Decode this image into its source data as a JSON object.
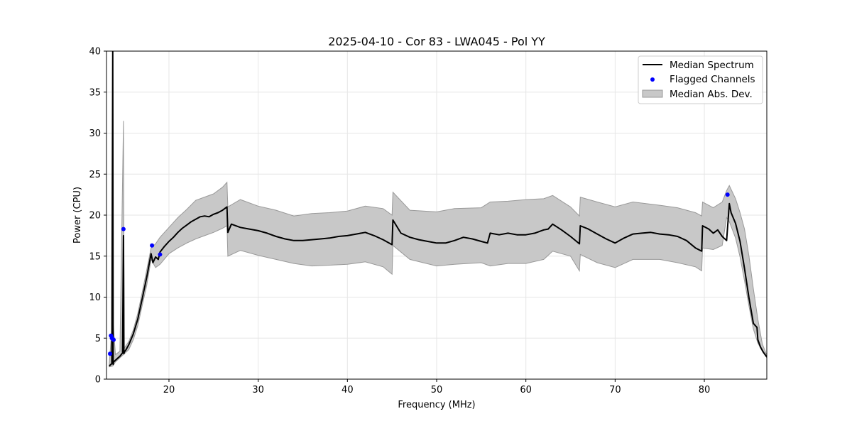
{
  "chart_data": {
    "type": "line",
    "title": "2025-04-10 - Cor 83 - LWA045 - Pol YY",
    "xlabel": "Frequency (MHz)",
    "ylabel": "Power (CPU)",
    "xlim": [
      13,
      87
    ],
    "ylim": [
      0,
      40
    ],
    "xticks": [
      20,
      30,
      40,
      50,
      60,
      70,
      80
    ],
    "yticks": [
      0,
      5,
      10,
      15,
      20,
      25,
      30,
      35,
      40
    ],
    "grid": true,
    "legend_position": "top-right",
    "colors": {
      "median": "#000000",
      "flagged": "#0000ff",
      "band_fill": "#c8c8c8",
      "band_edge": "#999999"
    },
    "legend": [
      {
        "label": "Median Spectrum",
        "kind": "line"
      },
      {
        "label": "Flagged Channels",
        "kind": "marker"
      },
      {
        "label": "Median Abs. Dev.",
        "kind": "patch"
      }
    ],
    "series": [
      {
        "name": "Median Spectrum",
        "x": [
          13.3,
          13.6,
          13.7,
          13.75,
          13.8,
          13.9,
          14.0,
          14.2,
          14.5,
          14.8,
          14.9,
          14.95,
          15.0,
          15.2,
          15.5,
          16.0,
          16.5,
          17.0,
          17.5,
          18.0,
          18.2,
          18.5,
          18.8,
          19.0,
          19.5,
          20.0,
          20.5,
          21.0,
          21.5,
          22.0,
          22.5,
          23.0,
          23.5,
          24.0,
          24.5,
          25.0,
          25.5,
          26.0,
          26.5,
          26.6,
          27.0,
          28.0,
          29.0,
          30.0,
          31.0,
          32.0,
          33.0,
          34.0,
          35.0,
          36.0,
          37.0,
          38.0,
          39.0,
          40.0,
          41.0,
          42.0,
          43.0,
          44.0,
          45.0,
          45.1,
          46.0,
          47.0,
          48.0,
          49.0,
          50.0,
          51.0,
          52.0,
          53.0,
          54.0,
          55.0,
          55.7,
          56.0,
          57.0,
          58.0,
          59.0,
          60.0,
          61.0,
          62.0,
          62.5,
          63.0,
          64.0,
          65.0,
          66.0,
          66.1,
          67.0,
          68.0,
          69.0,
          70.0,
          71.0,
          72.0,
          73.0,
          74.0,
          75.0,
          76.0,
          77.0,
          78.0,
          79.0,
          79.7,
          79.8,
          80.5,
          81.0,
          81.5,
          82.0,
          82.5,
          82.8,
          83.0,
          83.5,
          84.0,
          84.5,
          85.0,
          85.5,
          85.9,
          86.0,
          86.3,
          86.6,
          87.0
        ],
        "y": [
          1.6,
          1.9,
          40,
          1.8,
          2.1,
          2.2,
          2.3,
          2.5,
          2.8,
          3.2,
          17.5,
          3.1,
          3.3,
          3.6,
          4.2,
          5.5,
          7.3,
          9.8,
          12.4,
          15.3,
          14.2,
          14.9,
          14.6,
          15.5,
          16.2,
          16.8,
          17.3,
          17.9,
          18.4,
          18.8,
          19.2,
          19.5,
          19.8,
          19.9,
          19.8,
          20.1,
          20.3,
          20.6,
          21.0,
          17.9,
          18.9,
          18.5,
          18.3,
          18.1,
          17.8,
          17.4,
          17.1,
          16.9,
          16.9,
          17.0,
          17.1,
          17.2,
          17.4,
          17.5,
          17.7,
          17.9,
          17.5,
          17.0,
          16.4,
          19.4,
          17.8,
          17.3,
          17.0,
          16.8,
          16.6,
          16.6,
          16.9,
          17.3,
          17.1,
          16.8,
          16.6,
          17.8,
          17.6,
          17.8,
          17.6,
          17.6,
          17.8,
          18.2,
          18.3,
          18.9,
          18.2,
          17.4,
          16.5,
          18.7,
          18.3,
          17.7,
          17.1,
          16.6,
          17.2,
          17.7,
          17.8,
          17.9,
          17.7,
          17.6,
          17.4,
          16.9,
          16.0,
          15.6,
          18.7,
          18.3,
          17.8,
          18.2,
          17.4,
          16.9,
          21.4,
          20.3,
          19.0,
          16.8,
          13.5,
          9.9,
          6.8,
          6.3,
          4.8,
          3.9,
          3.3,
          2.7
        ]
      },
      {
        "name": "Median Abs. Dev.",
        "x": [
          13.3,
          13.7,
          14.0,
          14.5,
          14.9,
          15.0,
          15.5,
          16.0,
          16.5,
          17.0,
          17.5,
          18.0,
          18.5,
          19.0,
          20.0,
          21.0,
          22.0,
          23.0,
          24.0,
          25.0,
          26.0,
          26.5,
          26.6,
          28.0,
          30.0,
          32.0,
          34.0,
          36.0,
          38.0,
          40.0,
          42.0,
          44.0,
          45.0,
          45.1,
          47.0,
          50.0,
          52.0,
          55.0,
          56.0,
          58.0,
          60.0,
          62.0,
          63.0,
          65.0,
          66.0,
          66.1,
          68.0,
          70.0,
          72.0,
          75.0,
          77.0,
          79.0,
          79.7,
          79.8,
          81.0,
          82.0,
          82.5,
          82.8,
          83.5,
          84.0,
          84.5,
          85.0,
          85.5,
          86.0,
          86.5,
          87.0
        ],
        "upper": [
          1.8,
          7.5,
          3.0,
          3.4,
          31.5,
          3.8,
          4.6,
          6.0,
          8.0,
          10.6,
          13.3,
          16.0,
          16.5,
          17.3,
          18.5,
          19.7,
          20.7,
          21.8,
          22.2,
          22.6,
          23.4,
          24.0,
          21.0,
          21.9,
          21.1,
          20.6,
          19.9,
          20.2,
          20.3,
          20.5,
          21.1,
          20.8,
          20.0,
          22.8,
          20.6,
          20.4,
          20.8,
          20.9,
          21.6,
          21.7,
          21.9,
          22.0,
          22.4,
          21.0,
          19.9,
          22.2,
          21.6,
          21.0,
          21.6,
          21.2,
          20.9,
          20.3,
          19.9,
          21.6,
          20.9,
          21.6,
          23.0,
          23.6,
          22.0,
          20.3,
          18.3,
          15.0,
          11.0,
          7.3,
          4.3,
          2.9
        ],
        "lower": [
          1.5,
          1.6,
          2.1,
          2.6,
          3.0,
          3.1,
          3.6,
          4.8,
          6.5,
          9.0,
          11.4,
          14.6,
          13.6,
          14.0,
          15.3,
          16.0,
          16.6,
          17.1,
          17.5,
          17.9,
          18.4,
          18.7,
          15.0,
          15.7,
          15.1,
          14.6,
          14.1,
          13.8,
          13.9,
          14.0,
          14.3,
          13.7,
          12.8,
          16.3,
          14.6,
          13.8,
          14.0,
          14.2,
          13.8,
          14.1,
          14.1,
          14.6,
          15.6,
          15.0,
          13.2,
          15.2,
          14.2,
          13.6,
          14.6,
          14.6,
          14.2,
          13.7,
          13.2,
          16.0,
          15.8,
          16.3,
          19.7,
          19.2,
          17.2,
          14.9,
          12.0,
          8.9,
          6.1,
          4.4,
          3.4,
          2.6
        ]
      },
      {
        "name": "Flagged Channels",
        "x": [
          13.4,
          13.5,
          13.6,
          13.7,
          13.8,
          14.9,
          18.1,
          19.0,
          82.6
        ],
        "y": [
          3.1,
          5.3,
          5.0,
          4.9,
          4.8,
          18.3,
          16.3,
          15.2,
          22.5
        ]
      }
    ]
  }
}
